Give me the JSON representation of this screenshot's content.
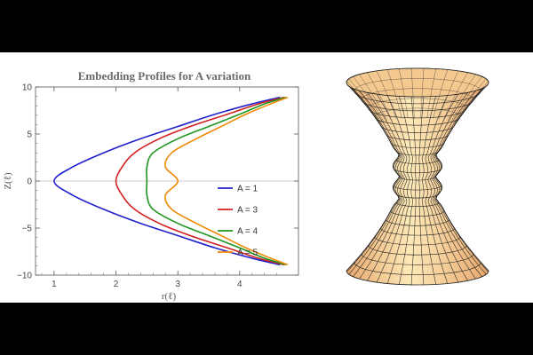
{
  "chart_data": [
    {
      "type": "line",
      "title": "Embedding Profiles for A variation",
      "xlabel": "r(ℓ)",
      "ylabel": "Z(ℓ)",
      "xlim": [
        0.7,
        4.95
      ],
      "ylim": [
        -10,
        10
      ],
      "x_ticks": [
        1,
        2,
        3,
        4
      ],
      "y_ticks": [
        -10,
        -5,
        0,
        5,
        10
      ],
      "grid": false,
      "legend_position": "right",
      "series": [
        {
          "name": "A = 1",
          "color": "#1f1fcc",
          "x": [
            1.0,
            1.3,
            1.8,
            2.4,
            3.0,
            3.6,
            4.2,
            4.65
          ],
          "y": [
            0.0,
            1.5,
            3.0,
            4.5,
            5.8,
            7.1,
            8.2,
            8.9
          ]
        },
        {
          "name": "A = 3",
          "color": "#d21f1f",
          "x": [
            2.0,
            2.1,
            2.3,
            2.7,
            3.2,
            3.8,
            4.3,
            4.72
          ],
          "y": [
            0.0,
            1.5,
            3.0,
            4.5,
            5.8,
            7.1,
            8.2,
            8.9
          ]
        },
        {
          "name": "A = 4",
          "color": "#1f961f",
          "x": [
            2.5,
            2.5,
            2.6,
            3.0,
            3.5,
            4.0,
            4.4,
            4.75
          ],
          "y": [
            0.0,
            1.5,
            3.0,
            4.5,
            5.8,
            7.1,
            8.2,
            8.9
          ]
        },
        {
          "name": "A = 5",
          "color": "#f08a0a",
          "x": [
            3.0,
            2.8,
            2.9,
            3.3,
            3.7,
            4.1,
            4.5,
            4.78
          ],
          "y": [
            0.0,
            1.5,
            3.0,
            4.5,
            5.8,
            7.1,
            8.2,
            8.9
          ]
        }
      ]
    }
  ],
  "surface": {
    "fill_light": "#fde9b8",
    "fill_dark": "#e8a86e",
    "mesh_color": "#222222"
  }
}
